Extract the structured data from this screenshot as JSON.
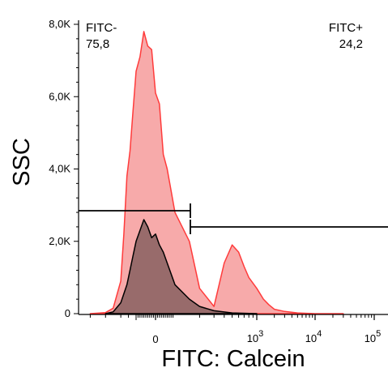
{
  "chart_data": {
    "type": "area",
    "xlabel": "FITC: Calcein",
    "ylabel": "SSC",
    "y_ticks": [
      {
        "value": 0,
        "label": "0"
      },
      {
        "value": 2000,
        "label": "2,0K"
      },
      {
        "value": 4000,
        "label": "4,0K"
      },
      {
        "value": 6000,
        "label": "6,0K"
      },
      {
        "value": 8000,
        "label": "8,0K"
      }
    ],
    "x_ticks": [
      {
        "value": 0,
        "base": "0",
        "exp": ""
      },
      {
        "value": 1000,
        "base": "10",
        "exp": "3"
      },
      {
        "value": 10000,
        "base": "10",
        "exp": "4"
      },
      {
        "value": 100000,
        "base": "10",
        "exp": "5"
      }
    ],
    "ylim": [
      0,
      8000
    ],
    "xscale": "biexponential",
    "gates": [
      {
        "name": "FITC-",
        "value": "75,8",
        "position": "top-left"
      },
      {
        "name": "FITC+",
        "value": "24,2",
        "position": "top-right"
      }
    ],
    "series": [
      {
        "color": "#ff3b3b",
        "fill": "#f7a5a5",
        "x": [
          -400,
          -300,
          -250,
          -200,
          -180,
          -160,
          -140,
          -120,
          -100,
          -80,
          -60,
          -40,
          -20,
          0,
          20,
          40,
          60,
          80,
          100,
          150,
          200,
          300,
          400,
          500,
          600,
          700,
          800,
          1000,
          1300,
          1600,
          2000,
          3000,
          5000,
          10000,
          30000
        ],
        "y": [
          0,
          30,
          150,
          900,
          2200,
          3800,
          4500,
          5600,
          6700,
          7100,
          7800,
          7400,
          7300,
          6100,
          5800,
          4400,
          4000,
          3400,
          2800,
          2000,
          700,
          200,
          1400,
          1900,
          1700,
          1300,
          1000,
          700,
          400,
          250,
          120,
          60,
          20,
          0,
          0
        ]
      },
      {
        "color": "#000000",
        "fill": "#8d6464",
        "x": [
          -300,
          -250,
          -200,
          -160,
          -140,
          -120,
          -100,
          -80,
          -60,
          -40,
          -20,
          0,
          20,
          40,
          60,
          80,
          100,
          150,
          200,
          300,
          500,
          1000
        ],
        "y": [
          0,
          50,
          300,
          800,
          1200,
          1600,
          2000,
          2300,
          2600,
          2400,
          2100,
          2200,
          1900,
          1700,
          1400,
          1100,
          800,
          400,
          200,
          80,
          20,
          0
        ]
      }
    ]
  }
}
